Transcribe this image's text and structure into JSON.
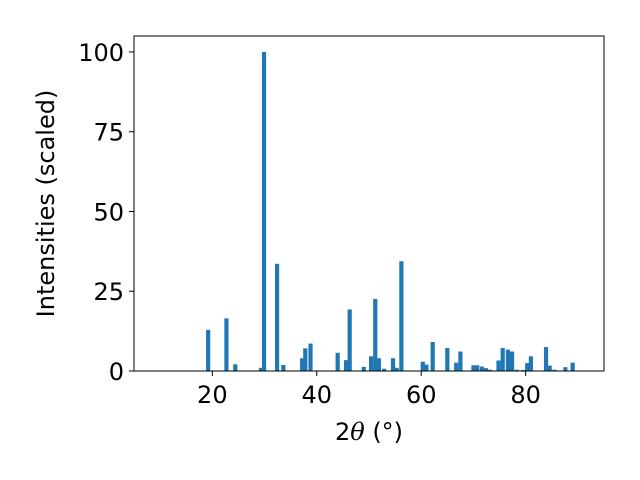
{
  "chart_data": {
    "type": "bar",
    "xlabel_prefix": "2",
    "xlabel_theta": "θ",
    "xlabel_suffix": " (°)",
    "ylabel": "Intensities (scaled)",
    "xlim": [
      5,
      95
    ],
    "ylim": [
      0,
      105
    ],
    "xticks": [
      20,
      40,
      60,
      80
    ],
    "yticks": [
      0,
      25,
      50,
      75,
      100
    ],
    "bar_color": "#1f77b4",
    "bar_width": 0.8,
    "x": [
      19.2,
      22.7,
      24.4,
      29.3,
      29.9,
      32.4,
      33.6,
      37.2,
      37.8,
      38.8,
      44.0,
      45.6,
      46.3,
      49.0,
      50.4,
      51.2,
      51.9,
      52.9,
      54.6,
      55.3,
      56.2,
      60.3,
      61.0,
      62.2,
      65.0,
      66.7,
      67.5,
      70.0,
      70.7,
      71.6,
      72.4,
      73.2,
      74.8,
      75.6,
      76.6,
      77.4,
      78.3,
      79.5,
      80.3,
      81.0,
      83.9,
      84.6,
      85.5,
      87.6,
      89.0
    ],
    "y": [
      12.9,
      16.5,
      2.1,
      1.0,
      100.0,
      33.6,
      1.9,
      4.0,
      7.1,
      8.6,
      5.7,
      3.4,
      19.3,
      1.3,
      4.6,
      22.6,
      4.0,
      0.7,
      4.0,
      1.0,
      34.4,
      2.9,
      2.0,
      9.1,
      7.2,
      2.6,
      6.1,
      1.8,
      1.8,
      1.4,
      0.9,
      0.4,
      3.3,
      7.2,
      6.7,
      6.1,
      0.4,
      0.3,
      2.5,
      4.6,
      7.5,
      1.7,
      0.4,
      1.2,
      2.6
    ]
  }
}
